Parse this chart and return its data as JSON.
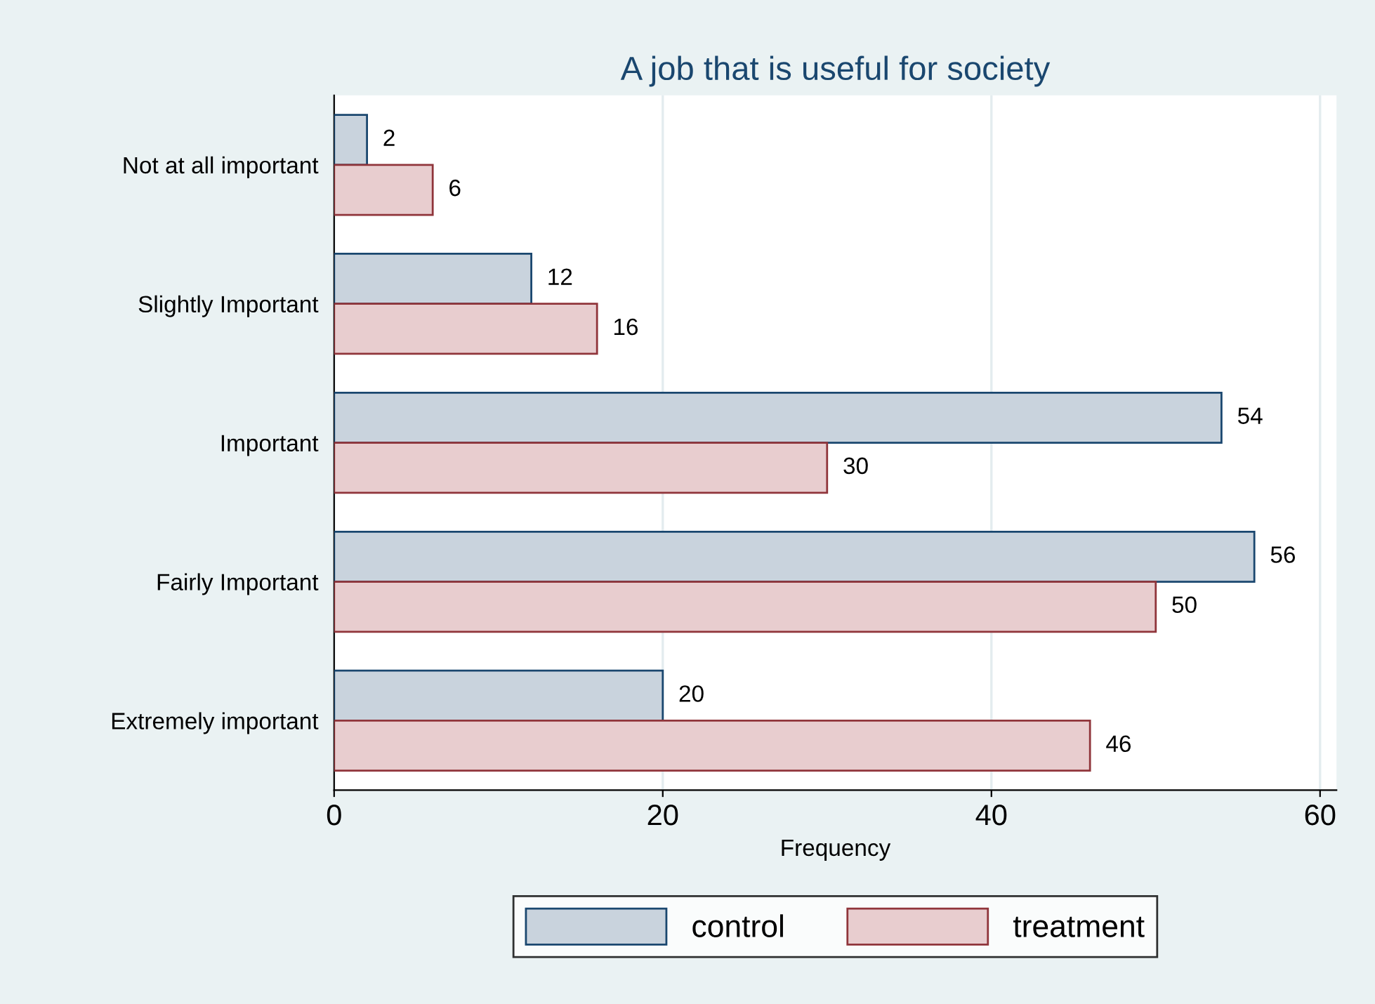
{
  "chart_data": {
    "type": "bar",
    "orientation": "horizontal",
    "title": "A job that is useful for society",
    "xlabel": "Frequency",
    "categories": [
      "Not at all important",
      "Slightly Important",
      "Important",
      "Fairly Important",
      "Extremely important"
    ],
    "series": [
      {
        "name": "control",
        "color": "#c9d3dd",
        "values": [
          2,
          12,
          54,
          56,
          20
        ]
      },
      {
        "name": "treatment",
        "color": "#e8cdcf",
        "values": [
          6,
          16,
          30,
          50,
          46
        ]
      }
    ],
    "xlim": [
      0,
      61
    ],
    "xticks": [
      0,
      20,
      40,
      60
    ],
    "grid": "x",
    "legend": "bottom",
    "data_labels": true
  }
}
